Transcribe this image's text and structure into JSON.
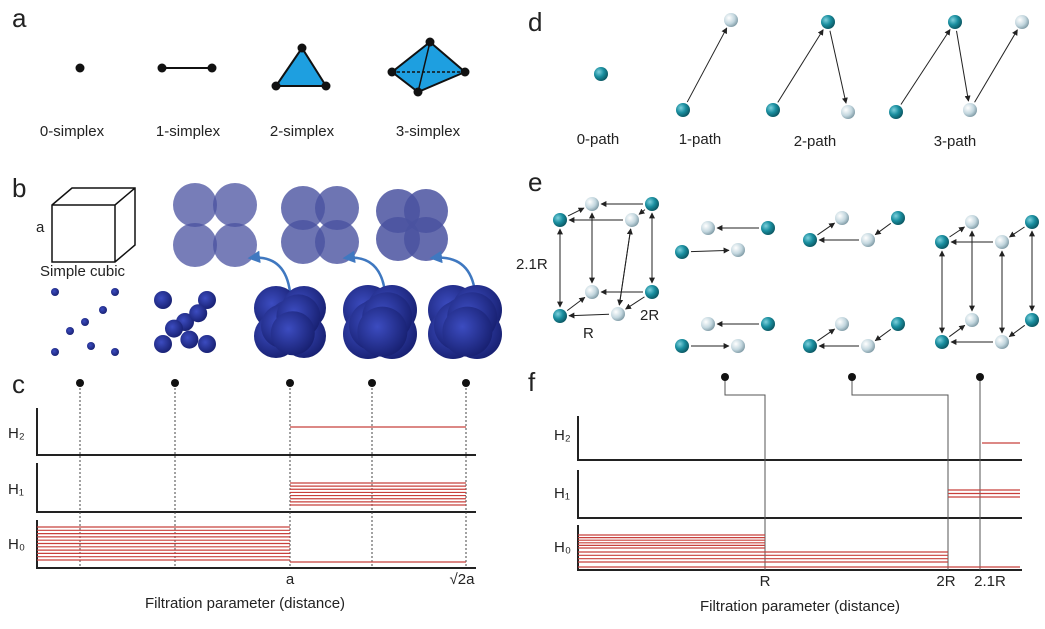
{
  "panels": {
    "a": {
      "label": "a",
      "items": [
        "0-simplex",
        "1-simplex",
        "2-simplex",
        "3-simplex"
      ]
    },
    "b": {
      "label": "b",
      "edge_label": "a",
      "cube_label": "Simple cubic"
    },
    "c": {
      "label": "c",
      "rows": [
        "H₂",
        "H₁",
        "H₀"
      ],
      "ticks": [
        "a",
        "√2a"
      ],
      "xlabel": "Filtration parameter (distance)"
    },
    "d": {
      "label": "d",
      "items": [
        "0-path",
        "1-path",
        "2-path",
        "3-path"
      ]
    },
    "e": {
      "label": "e",
      "edge_labels": [
        "2.1R",
        "R",
        "2R"
      ]
    },
    "f": {
      "label": "f",
      "rows": [
        "H₂",
        "H₁",
        "H₀"
      ],
      "ticks": [
        "R",
        "2R",
        "2.1R"
      ],
      "xlabel": "Filtration parameter (distance)"
    }
  }
}
